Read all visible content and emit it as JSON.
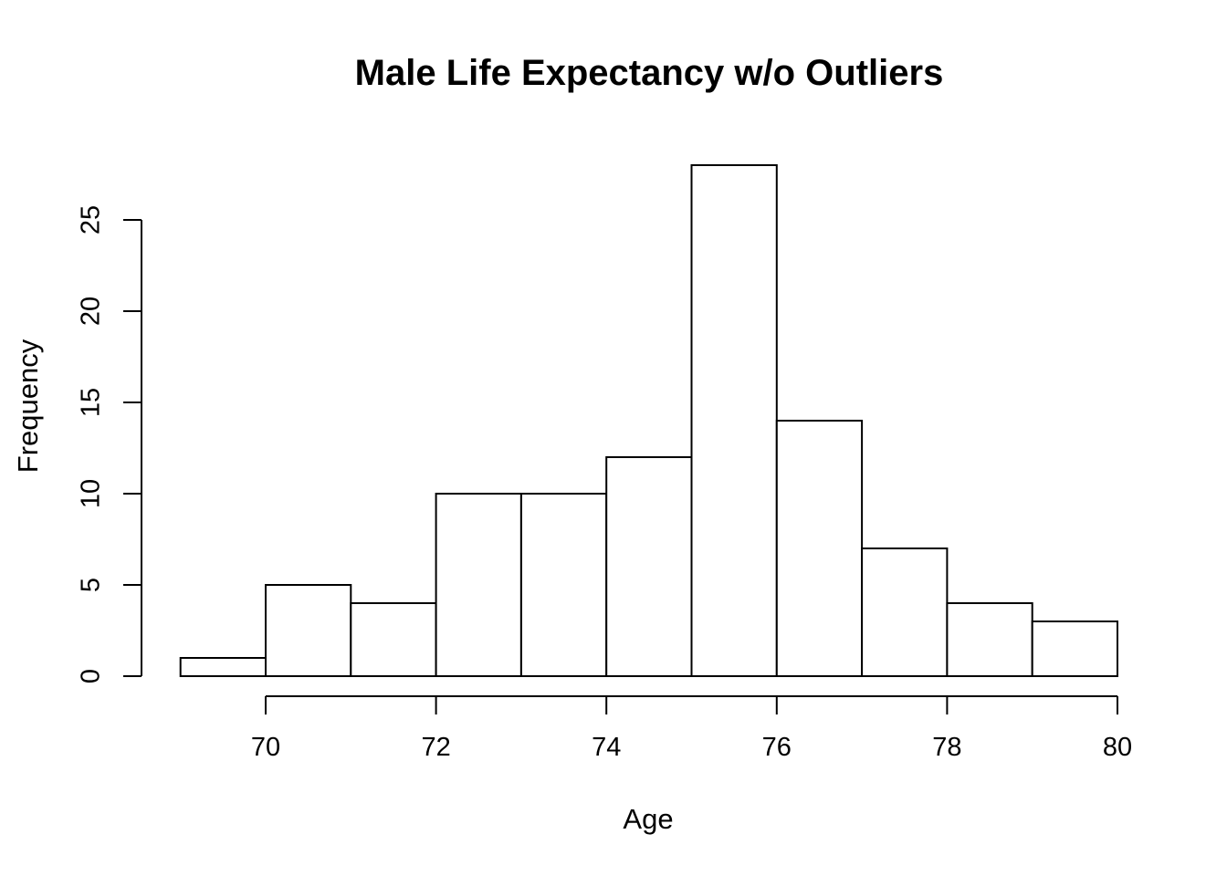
{
  "chart_data": {
    "type": "bar",
    "subtype": "histogram",
    "title": "Male Life Expectancy w/o Outliers",
    "xlabel": "Age",
    "ylabel": "Frequency",
    "bin_edges": [
      69,
      70,
      71,
      72,
      73,
      74,
      75,
      76,
      77,
      78,
      79,
      80
    ],
    "counts": [
      1,
      5,
      4,
      10,
      10,
      12,
      28,
      14,
      7,
      4,
      3
    ],
    "x_ticks": [
      70,
      72,
      74,
      76,
      78,
      80
    ],
    "y_ticks": [
      0,
      5,
      10,
      15,
      20,
      25
    ],
    "xlim": [
      69,
      80
    ],
    "ylim": [
      0,
      28
    ],
    "grid": false,
    "legend": "none",
    "bar_fill": "#ffffff",
    "line_color": "#000000",
    "background": "#ffffff"
  }
}
